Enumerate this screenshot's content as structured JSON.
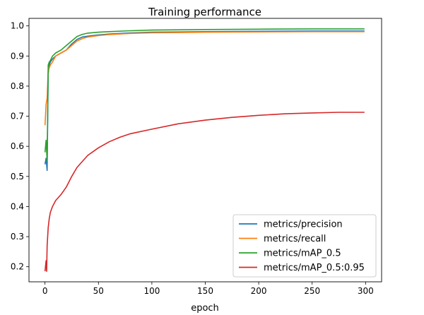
{
  "chart_data": {
    "type": "line",
    "title": "Training performance",
    "xlabel": "epoch",
    "ylabel": "",
    "xlim": [
      -15,
      315
    ],
    "ylim": [
      0.15,
      1.025
    ],
    "xticks": [
      0,
      50,
      100,
      150,
      200,
      250,
      300
    ],
    "yticks": [
      0.2,
      0.3,
      0.4,
      0.5,
      0.6,
      0.7,
      0.8,
      0.9,
      1.0
    ],
    "ytick_labels": [
      "0.2",
      "0.3",
      "0.4",
      "0.5",
      "0.6",
      "0.7",
      "0.8",
      "0.9",
      "1.0"
    ],
    "grid": false,
    "legend_position": "lower-right",
    "series": [
      {
        "name": "metrics/precision",
        "color": "#1f77b4",
        "x": [
          0,
          1,
          2,
          3,
          4,
          5,
          7,
          10,
          15,
          20,
          25,
          30,
          35,
          40,
          50,
          60,
          80,
          100,
          150,
          200,
          250,
          299
        ],
        "y": [
          0.54,
          0.56,
          0.52,
          0.84,
          0.87,
          0.88,
          0.89,
          0.9,
          0.91,
          0.92,
          0.94,
          0.955,
          0.963,
          0.966,
          0.97,
          0.973,
          0.977,
          0.979,
          0.981,
          0.982,
          0.983,
          0.983
        ]
      },
      {
        "name": "metrics/recall",
        "color": "#ff7f0e",
        "x": [
          0,
          1,
          2,
          3,
          4,
          5,
          7,
          10,
          15,
          20,
          25,
          30,
          35,
          40,
          50,
          60,
          80,
          100,
          150,
          200,
          250,
          299
        ],
        "y": [
          0.67,
          0.74,
          0.76,
          0.85,
          0.86,
          0.87,
          0.88,
          0.9,
          0.91,
          0.92,
          0.935,
          0.95,
          0.958,
          0.963,
          0.968,
          0.971,
          0.975,
          0.977,
          0.979,
          0.98,
          0.981,
          0.981
        ]
      },
      {
        "name": "metrics/mAP_0.5",
        "color": "#2ca02c",
        "x": [
          0,
          1,
          2,
          3,
          4,
          5,
          7,
          10,
          15,
          20,
          25,
          30,
          35,
          40,
          50,
          60,
          80,
          100,
          150,
          200,
          250,
          299
        ],
        "y": [
          0.58,
          0.62,
          0.55,
          0.87,
          0.88,
          0.885,
          0.9,
          0.91,
          0.92,
          0.935,
          0.95,
          0.965,
          0.972,
          0.976,
          0.979,
          0.981,
          0.984,
          0.986,
          0.988,
          0.989,
          0.99,
          0.99
        ]
      },
      {
        "name": "metrics/mAP_0.5:0.95",
        "color": "#d62728",
        "x": [
          0,
          1,
          1.5,
          2,
          3,
          4,
          5,
          7,
          10,
          15,
          20,
          25,
          30,
          35,
          40,
          50,
          60,
          70,
          80,
          100,
          125,
          150,
          175,
          200,
          225,
          250,
          275,
          299
        ],
        "y": [
          0.185,
          0.22,
          0.185,
          0.27,
          0.33,
          0.36,
          0.38,
          0.4,
          0.42,
          0.44,
          0.465,
          0.5,
          0.53,
          0.55,
          0.57,
          0.595,
          0.615,
          0.63,
          0.642,
          0.657,
          0.675,
          0.687,
          0.696,
          0.703,
          0.708,
          0.711,
          0.713,
          0.713
        ]
      }
    ]
  }
}
